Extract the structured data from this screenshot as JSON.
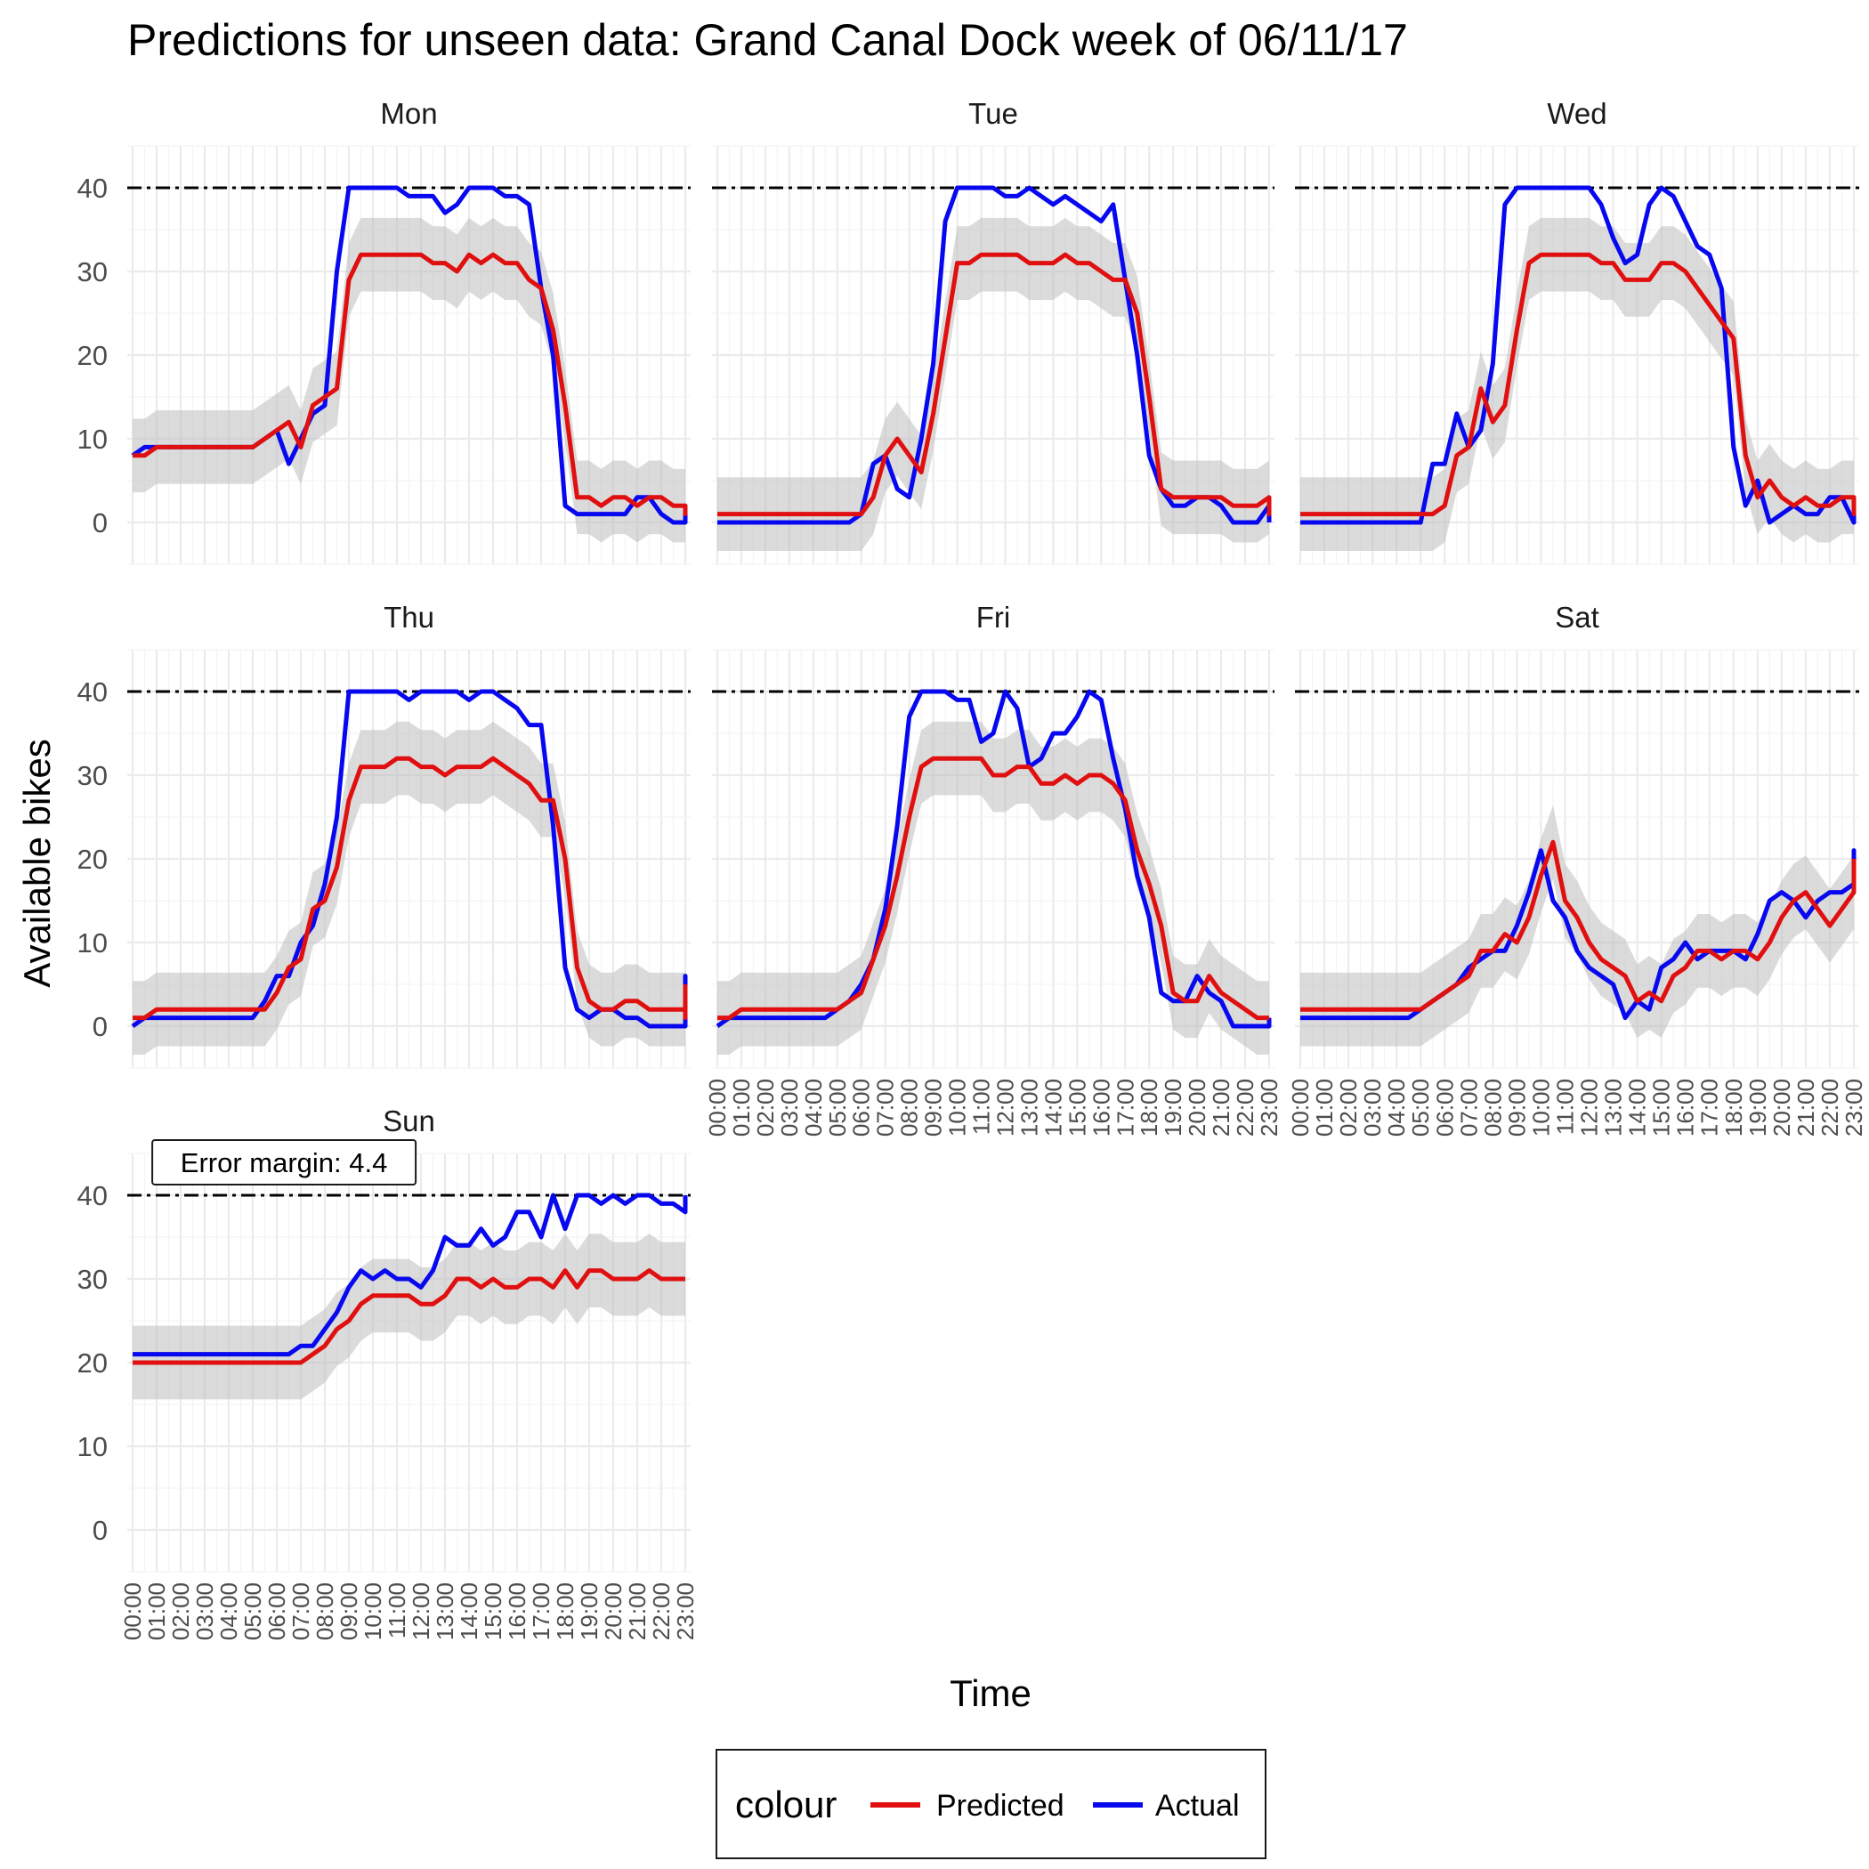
{
  "chart_data": {
    "type": "line",
    "title": "Predictions for unseen data: Grand Canal Dock week of 06/11/17",
    "xlabel": "Time",
    "ylabel": "Available bikes",
    "ylim": [
      -5,
      45
    ],
    "yticks": [
      0,
      10,
      20,
      30,
      40
    ],
    "xticks": [
      "00:00",
      "01:00",
      "02:00",
      "03:00",
      "04:00",
      "05:00",
      "06:00",
      "07:00",
      "08:00",
      "09:00",
      "10:00",
      "11:00",
      "12:00",
      "13:00",
      "14:00",
      "15:00",
      "16:00",
      "17:00",
      "18:00",
      "19:00",
      "20:00",
      "21:00",
      "22:00",
      "23:00"
    ],
    "x_step_hours": 0.5,
    "capacity_line": 40,
    "band_half_width": 4.4,
    "annotation": "Error margin: 4.4",
    "legend": {
      "title": "colour",
      "position": "bottom",
      "items": [
        "Predicted",
        "Actual"
      ]
    },
    "colors": {
      "Predicted": "#e01010",
      "Actual": "#0808f0",
      "band": "#bdbdbd",
      "capacity": "#000000"
    },
    "grid": true,
    "panels": [
      {
        "label": "Mon",
        "series": [
          {
            "name": "Predicted",
            "values": [
              8,
              8,
              9,
              9,
              9,
              9,
              9,
              9,
              9,
              9,
              9,
              10,
              11,
              12,
              9,
              14,
              15,
              16,
              29,
              32,
              32,
              32,
              32,
              32,
              32,
              31,
              31,
              30,
              32,
              31,
              32,
              31,
              31,
              29,
              28,
              23,
              14,
              3,
              3,
              2,
              3,
              3,
              2,
              3,
              3,
              2,
              2,
              1,
              2
            ]
          },
          {
            "name": "Actual",
            "values": [
              8,
              9,
              9,
              9,
              9,
              9,
              9,
              9,
              9,
              9,
              9,
              10,
              11,
              7,
              10,
              13,
              14,
              30,
              40,
              40,
              40,
              40,
              40,
              39,
              39,
              39,
              37,
              38,
              40,
              40,
              40,
              39,
              39,
              38,
              28,
              20,
              2,
              1,
              1,
              1,
              1,
              1,
              3,
              3,
              1,
              0,
              0,
              1,
              0
            ]
          }
        ]
      },
      {
        "label": "Tue",
        "series": [
          {
            "name": "Predicted",
            "values": [
              1,
              1,
              1,
              1,
              1,
              1,
              1,
              1,
              1,
              1,
              1,
              1,
              1,
              3,
              8,
              10,
              8,
              6,
              13,
              22,
              31,
              31,
              32,
              32,
              32,
              32,
              31,
              31,
              31,
              32,
              31,
              31,
              30,
              29,
              29,
              25,
              15,
              4,
              3,
              3,
              3,
              3,
              3,
              2,
              2,
              2,
              3,
              1,
              2,
              1
            ]
          },
          {
            "name": "Actual",
            "values": [
              0,
              0,
              0,
              0,
              0,
              0,
              0,
              0,
              0,
              0,
              0,
              0,
              1,
              7,
              8,
              4,
              3,
              10,
              19,
              36,
              40,
              40,
              40,
              40,
              39,
              39,
              40,
              39,
              38,
              39,
              38,
              37,
              36,
              38,
              29,
              20,
              8,
              4,
              2,
              2,
              3,
              3,
              2,
              0,
              0,
              0,
              2,
              0,
              0,
              0
            ]
          }
        ]
      },
      {
        "label": "Wed",
        "series": [
          {
            "name": "Predicted",
            "values": [
              1,
              1,
              1,
              1,
              1,
              1,
              1,
              1,
              1,
              1,
              1,
              1,
              2,
              8,
              9,
              16,
              12,
              14,
              23,
              31,
              32,
              32,
              32,
              32,
              32,
              31,
              31,
              29,
              29,
              29,
              31,
              31,
              30,
              28,
              26,
              24,
              22,
              8,
              3,
              5,
              3,
              2,
              3,
              2,
              2,
              3,
              3,
              1,
              3
            ]
          },
          {
            "name": "Actual",
            "values": [
              0,
              0,
              0,
              0,
              0,
              0,
              0,
              0,
              0,
              0,
              0,
              7,
              7,
              13,
              9,
              11,
              19,
              38,
              40,
              40,
              40,
              40,
              40,
              40,
              40,
              38,
              34,
              31,
              32,
              38,
              40,
              39,
              36,
              33,
              32,
              28,
              9,
              2,
              5,
              0,
              1,
              2,
              1,
              1,
              3,
              3,
              0,
              2,
              2
            ]
          }
        ]
      },
      {
        "label": "Thu",
        "series": [
          {
            "name": "Predicted",
            "values": [
              1,
              1,
              2,
              2,
              2,
              2,
              2,
              2,
              2,
              2,
              2,
              2,
              4,
              7,
              8,
              14,
              15,
              19,
              27,
              31,
              31,
              31,
              32,
              32,
              31,
              31,
              30,
              31,
              31,
              31,
              32,
              31,
              30,
              29,
              27,
              27,
              20,
              7,
              3,
              2,
              2,
              3,
              3,
              2,
              2,
              2,
              2,
              2,
              1,
              3,
              5
            ]
          },
          {
            "name": "Actual",
            "values": [
              0,
              1,
              1,
              1,
              1,
              1,
              1,
              1,
              1,
              1,
              1,
              3,
              6,
              6,
              10,
              12,
              17,
              25,
              40,
              40,
              40,
              40,
              40,
              39,
              40,
              40,
              40,
              40,
              39,
              40,
              40,
              39,
              38,
              36,
              36,
              24,
              7,
              2,
              1,
              2,
              2,
              1,
              1,
              0,
              0,
              0,
              0,
              3,
              6,
              4
            ]
          }
        ]
      },
      {
        "label": "Fri",
        "series": [
          {
            "name": "Predicted",
            "values": [
              1,
              1,
              2,
              2,
              2,
              2,
              2,
              2,
              2,
              2,
              2,
              3,
              4,
              8,
              12,
              18,
              25,
              31,
              32,
              32,
              32,
              32,
              32,
              30,
              30,
              31,
              31,
              29,
              29,
              30,
              29,
              30,
              30,
              29,
              27,
              21,
              17,
              12,
              4,
              3,
              3,
              6,
              4,
              3,
              2,
              1,
              1,
              1
            ]
          },
          {
            "name": "Actual",
            "values": [
              0,
              1,
              1,
              1,
              1,
              1,
              1,
              1,
              1,
              1,
              2,
              3,
              5,
              8,
              14,
              24,
              37,
              40,
              40,
              40,
              39,
              39,
              34,
              35,
              40,
              38,
              31,
              32,
              35,
              35,
              37,
              40,
              39,
              32,
              26,
              18,
              13,
              4,
              3,
              3,
              6,
              4,
              3,
              0,
              0,
              0,
              0,
              1
            ]
          }
        ]
      },
      {
        "label": "Sat",
        "series": [
          {
            "name": "Predicted",
            "values": [
              2,
              2,
              2,
              2,
              2,
              2,
              2,
              2,
              2,
              2,
              2,
              3,
              4,
              5,
              6,
              9,
              9,
              11,
              10,
              13,
              18,
              22,
              15,
              13,
              10,
              8,
              7,
              6,
              3,
              4,
              3,
              6,
              7,
              9,
              9,
              8,
              9,
              9,
              8,
              10,
              13,
              15,
              16,
              14,
              12,
              14,
              16,
              16,
              18,
              20,
              20
            ]
          },
          {
            "name": "Actual",
            "values": [
              1,
              1,
              1,
              1,
              1,
              1,
              1,
              1,
              1,
              1,
              2,
              3,
              4,
              5,
              7,
              8,
              9,
              9,
              12,
              16,
              21,
              15,
              13,
              9,
              7,
              6,
              5,
              1,
              3,
              2,
              7,
              8,
              10,
              8,
              9,
              9,
              9,
              8,
              11,
              15,
              16,
              15,
              13,
              15,
              16,
              16,
              17,
              19,
              21,
              21,
              20
            ]
          }
        ]
      },
      {
        "label": "Sun",
        "series": [
          {
            "name": "Predicted",
            "values": [
              20,
              20,
              20,
              20,
              20,
              20,
              20,
              20,
              20,
              20,
              20,
              20,
              20,
              20,
              20,
              21,
              22,
              24,
              25,
              27,
              28,
              28,
              28,
              28,
              27,
              27,
              28,
              30,
              30,
              29,
              30,
              29,
              29,
              30,
              30,
              29,
              31,
              29,
              31,
              31,
              30,
              30,
              30,
              31,
              30,
              30,
              30,
              30,
              30,
              30
            ]
          },
          {
            "name": "Actual",
            "values": [
              21,
              21,
              21,
              21,
              21,
              21,
              21,
              21,
              21,
              21,
              21,
              21,
              21,
              21,
              22,
              22,
              24,
              26,
              29,
              31,
              30,
              31,
              30,
              30,
              29,
              31,
              35,
              34,
              34,
              36,
              34,
              35,
              38,
              38,
              35,
              40,
              36,
              40,
              40,
              39,
              40,
              39,
              40,
              40,
              39,
              39,
              38,
              39,
              40
            ]
          }
        ]
      }
    ]
  }
}
